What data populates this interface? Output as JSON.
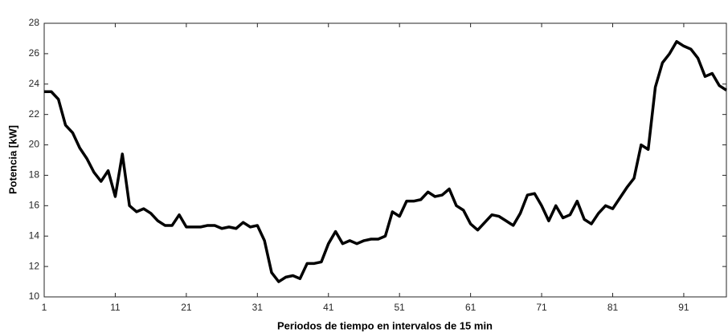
{
  "chart_data": {
    "type": "line",
    "x_label": "Periodos de tiempo en intervalos de 15 min",
    "y_label": "Potencia [kW]",
    "x": [
      1,
      2,
      3,
      4,
      5,
      6,
      7,
      8,
      9,
      10,
      11,
      12,
      13,
      14,
      15,
      16,
      17,
      18,
      19,
      20,
      21,
      22,
      23,
      24,
      25,
      26,
      27,
      28,
      29,
      30,
      31,
      32,
      33,
      34,
      35,
      36,
      37,
      38,
      39,
      40,
      41,
      42,
      43,
      44,
      45,
      46,
      47,
      48,
      49,
      50,
      51,
      52,
      53,
      54,
      55,
      56,
      57,
      58,
      59,
      60,
      61,
      62,
      63,
      64,
      65,
      66,
      67,
      68,
      69,
      70,
      71,
      72,
      73,
      74,
      75,
      76,
      77,
      78,
      79,
      80,
      81,
      82,
      83,
      84,
      85,
      86,
      87,
      88,
      89,
      90,
      91,
      92,
      93,
      94,
      95,
      96,
      97
    ],
    "series": [
      {
        "color": "#000000",
        "values": [
          23.5,
          23.5,
          23.0,
          21.3,
          20.8,
          19.8,
          19.1,
          18.2,
          17.6,
          18.3,
          16.6,
          19.4,
          16.0,
          15.6,
          15.8,
          15.5,
          15.0,
          14.7,
          14.7,
          15.4,
          14.6,
          14.6,
          14.6,
          14.7,
          14.7,
          14.5,
          14.6,
          14.5,
          14.9,
          14.6,
          14.7,
          13.7,
          11.6,
          11.0,
          11.3,
          11.4,
          11.2,
          12.2,
          12.2,
          12.3,
          13.5,
          14.3,
          13.5,
          13.7,
          13.5,
          13.7,
          13.8,
          13.8,
          14.0,
          15.6,
          15.3,
          16.3,
          16.3,
          16.4,
          16.9,
          16.6,
          16.7,
          17.1,
          16.0,
          15.7,
          14.8,
          14.4,
          14.9,
          15.4,
          15.3,
          15.0,
          14.7,
          15.5,
          16.7,
          16.8,
          16.0,
          15.0,
          16.0,
          15.2,
          15.4,
          16.3,
          15.1,
          14.8,
          15.5,
          16.0,
          15.8,
          16.5,
          17.2,
          17.8,
          20.0,
          19.7,
          23.8,
          25.4,
          26.0,
          26.8,
          26.5,
          26.3,
          25.7,
          24.5,
          24.7,
          23.9,
          23.6
        ]
      }
    ],
    "xlim": [
      1,
      97
    ],
    "xticks": [
      1,
      11,
      21,
      31,
      41,
      51,
      61,
      71,
      81,
      91
    ],
    "ylim": [
      10,
      28
    ],
    "yticks": [
      10,
      12,
      14,
      16,
      18,
      20,
      22,
      24,
      26,
      28
    ]
  }
}
